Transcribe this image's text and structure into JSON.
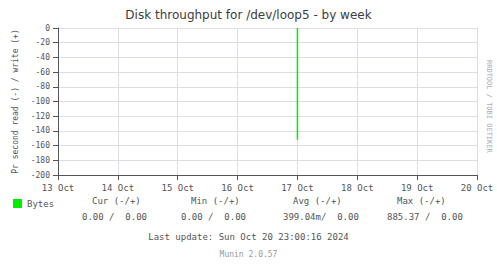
{
  "chart_data": {
    "type": "line",
    "title": "Disk throughput for /dev/loop5 - by week",
    "ylabel": "Pr second read (-) / write (+)",
    "series": [
      {
        "name": "Bytes",
        "color": "#00ee00",
        "x": [
          4.0,
          4.0
        ],
        "values": [
          0,
          -152
        ]
      }
    ],
    "xlim": [
      0,
      7
    ],
    "xticks": [
      {
        "value": 0,
        "label": "13 Oct"
      },
      {
        "value": 1,
        "label": "14 Oct"
      },
      {
        "value": 2,
        "label": "15 Oct"
      },
      {
        "value": 3,
        "label": "16 Oct"
      },
      {
        "value": 4,
        "label": "17 Oct"
      },
      {
        "value": 5,
        "label": "18 Oct"
      },
      {
        "value": 6,
        "label": "19 Oct"
      },
      {
        "value": 7,
        "label": "20 Oct"
      }
    ],
    "ylim": [
      -200,
      0
    ],
    "yticks": [
      0,
      -20,
      -40,
      -60,
      -80,
      -100,
      -120,
      -140,
      -160,
      -180,
      -200
    ],
    "grid": true,
    "legend": "bottom left",
    "annotations": [
      "Cur (-/+)",
      "Min (-/+)",
      "Avg (-/+)",
      "Max (-/+)",
      "0.00 /  0.00",
      "0.00 /  0.00",
      "399.04m/  0.00",
      "885.37 /  0.00",
      "Last update: Sun Oct 20 23:00:16 2024",
      "Munin 2.0.57",
      "RRDTOOL / TOBI OETIKER"
    ]
  }
}
